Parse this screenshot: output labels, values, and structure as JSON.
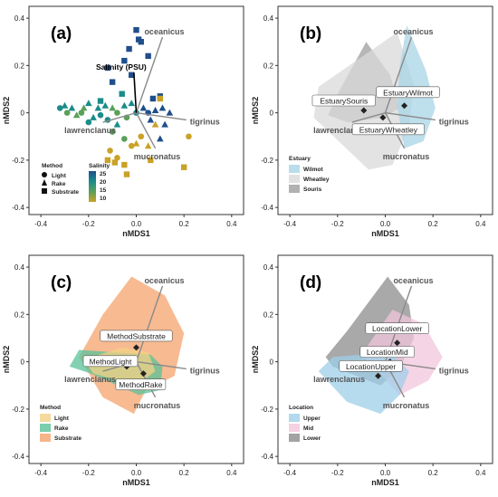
{
  "chart_data": [
    {
      "panel_label": "(a)",
      "type": "scatter",
      "xlabel": "nMDS1",
      "ylabel": "nMDS2",
      "xlim": [
        -0.45,
        0.45
      ],
      "ylim": [
        -0.43,
        0.45
      ],
      "x_ticks": [
        "-0.4",
        "-0.2",
        "0.0",
        "0.2",
        "0.4"
      ],
      "y_ticks": [
        "0.4",
        "0.2",
        "0",
        "-0.2",
        "-0.4"
      ],
      "vectors": [
        {
          "label": "oceanicus",
          "x": 0.11,
          "y": 0.32
        },
        {
          "label": "tigrinus",
          "x": 0.21,
          "y": -0.03
        },
        {
          "label": "mucronatus",
          "x": 0.08,
          "y": -0.15
        },
        {
          "label": "lawrenclanus",
          "x": -0.14,
          "y": -0.04
        },
        {
          "label": "Salinity (PSU)",
          "x": -0.01,
          "y": 0.17
        }
      ],
      "legend_method_title": "Method",
      "legend_method": [
        "Light",
        "Rake",
        "Substrate"
      ],
      "legend_salinity_title": "Salinity",
      "legend_salinity": [
        "25",
        "20",
        "15",
        "10"
      ],
      "salinity_colors": [
        "#1f4e8c",
        "#1a8c8a",
        "#5aa05a",
        "#c9a227"
      ],
      "points": [
        {
          "x": 0.0,
          "y": 0.35,
          "m": "s",
          "c": 0
        },
        {
          "x": 0.01,
          "y": 0.31,
          "m": "s",
          "c": 0
        },
        {
          "x": 0.02,
          "y": 0.3,
          "m": "s",
          "c": 0
        },
        {
          "x": -0.03,
          "y": 0.27,
          "m": "s",
          "c": 0
        },
        {
          "x": 0.05,
          "y": 0.24,
          "m": "s",
          "c": 0
        },
        {
          "x": -0.05,
          "y": 0.22,
          "m": "s",
          "c": 0
        },
        {
          "x": -0.12,
          "y": 0.19,
          "m": "s",
          "c": 0
        },
        {
          "x": -0.02,
          "y": 0.16,
          "m": "s",
          "c": 0
        },
        {
          "x": -0.1,
          "y": 0.13,
          "m": "s",
          "c": 0
        },
        {
          "x": -0.06,
          "y": 0.08,
          "m": "s",
          "c": 1
        },
        {
          "x": 0.07,
          "y": 0.06,
          "m": "s",
          "c": 0
        },
        {
          "x": 0.1,
          "y": 0.07,
          "m": "s",
          "c": 0
        },
        {
          "x": -0.15,
          "y": 0.05,
          "m": "s",
          "c": 1
        },
        {
          "x": -0.3,
          "y": 0.03,
          "m": "t",
          "c": 1
        },
        {
          "x": -0.27,
          "y": 0.02,
          "m": "t",
          "c": 1
        },
        {
          "x": -0.22,
          "y": 0.02,
          "m": "t",
          "c": 2
        },
        {
          "x": -0.2,
          "y": 0.04,
          "m": "t",
          "c": 1
        },
        {
          "x": -0.16,
          "y": 0.02,
          "m": "t",
          "c": 1
        },
        {
          "x": -0.13,
          "y": 0.03,
          "m": "t",
          "c": 1
        },
        {
          "x": -0.1,
          "y": 0.02,
          "m": "t",
          "c": 2
        },
        {
          "x": -0.05,
          "y": 0.03,
          "m": "t",
          "c": 1
        },
        {
          "x": -0.02,
          "y": 0.04,
          "m": "t",
          "c": 1
        },
        {
          "x": 0.03,
          "y": 0.02,
          "m": "t",
          "c": 0
        },
        {
          "x": 0.08,
          "y": 0.01,
          "m": "t",
          "c": 0
        },
        {
          "x": 0.11,
          "y": 0.02,
          "m": "t",
          "c": 0
        },
        {
          "x": 0.14,
          "y": 0.0,
          "m": "t",
          "c": 0
        },
        {
          "x": -0.25,
          "y": -0.01,
          "m": "t",
          "c": 2
        },
        {
          "x": -0.18,
          "y": -0.02,
          "m": "t",
          "c": 1
        },
        {
          "x": 0.06,
          "y": -0.03,
          "m": "t",
          "c": 0
        },
        {
          "x": 0.12,
          "y": -0.05,
          "m": "t",
          "c": 0
        },
        {
          "x": -0.08,
          "y": -0.05,
          "m": "t",
          "c": 1
        },
        {
          "x": 0.1,
          "y": -0.11,
          "m": "t",
          "c": 0
        },
        {
          "x": -0.32,
          "y": 0.02,
          "m": "c",
          "c": 1
        },
        {
          "x": -0.29,
          "y": 0.0,
          "m": "c",
          "c": 2
        },
        {
          "x": -0.23,
          "y": 0.0,
          "m": "c",
          "c": 2
        },
        {
          "x": -0.2,
          "y": -0.04,
          "m": "c",
          "c": 1
        },
        {
          "x": -0.15,
          "y": -0.01,
          "m": "c",
          "c": 1
        },
        {
          "x": -0.12,
          "y": -0.03,
          "m": "c",
          "c": 1
        },
        {
          "x": -0.08,
          "y": 0.0,
          "m": "c",
          "c": 2
        },
        {
          "x": -0.04,
          "y": -0.02,
          "m": "c",
          "c": 2
        },
        {
          "x": 0.0,
          "y": 0.0,
          "m": "c",
          "c": 1
        },
        {
          "x": 0.05,
          "y": 0.0,
          "m": "c",
          "c": 0
        },
        {
          "x": -0.1,
          "y": -0.08,
          "m": "c",
          "c": 2
        },
        {
          "x": -0.05,
          "y": -0.11,
          "m": "c",
          "c": 2
        },
        {
          "x": -0.11,
          "y": -0.16,
          "m": "c",
          "c": 3
        },
        {
          "x": -0.08,
          "y": -0.19,
          "m": "c",
          "c": 3
        },
        {
          "x": -0.02,
          "y": -0.14,
          "m": "c",
          "c": 3
        },
        {
          "x": 0.02,
          "y": -0.1,
          "m": "c",
          "c": 3
        },
        {
          "x": 0.0,
          "y": -0.13,
          "m": "t",
          "c": 3
        },
        {
          "x": 0.05,
          "y": -0.14,
          "m": "t",
          "c": 3
        },
        {
          "x": 0.08,
          "y": -0.05,
          "m": "t",
          "c": 3
        },
        {
          "x": 0.22,
          "y": -0.1,
          "m": "c",
          "c": 3
        },
        {
          "x": -0.09,
          "y": -0.21,
          "m": "s",
          "c": 3
        },
        {
          "x": -0.05,
          "y": -0.22,
          "m": "s",
          "c": 3
        },
        {
          "x": -0.12,
          "y": -0.2,
          "m": "s",
          "c": 3
        },
        {
          "x": -0.04,
          "y": -0.26,
          "m": "s",
          "c": 3
        },
        {
          "x": 0.06,
          "y": -0.2,
          "m": "s",
          "c": 3
        },
        {
          "x": 0.2,
          "y": -0.23,
          "m": "s",
          "c": 3
        },
        {
          "x": 0.1,
          "y": 0.06,
          "m": "s",
          "c": 3
        }
      ]
    },
    {
      "panel_label": "(b)",
      "type": "scatter",
      "xlabel": "nMDS1",
      "ylabel": "nMDS2",
      "xlim": [
        -0.45,
        0.45
      ],
      "ylim": [
        -0.43,
        0.45
      ],
      "x_ticks": [
        "-0.4",
        "-0.2",
        "0.0",
        "0.2",
        "0.4"
      ],
      "y_ticks": [
        "0.4",
        "0.2",
        "0",
        "-0.2",
        "-0.4"
      ],
      "vectors": [
        {
          "label": "oceanicus",
          "x": 0.11,
          "y": 0.32
        },
        {
          "label": "tigrinus",
          "x": 0.21,
          "y": -0.03
        },
        {
          "label": "mucronatus",
          "x": 0.08,
          "y": -0.15
        },
        {
          "label": "lawrenclanus",
          "x": -0.14,
          "y": -0.04
        }
      ],
      "legend_title": "Estuary",
      "groups": [
        {
          "name": "Souris",
          "color": "#9e9e9e",
          "centroid_label": "EstuarySouris",
          "centroid": [
            -0.09,
            0.01
          ],
          "hull": [
            [
              -0.08,
              0.3
            ],
            [
              0.02,
              0.16
            ],
            [
              0.06,
              0.02
            ],
            [
              -0.01,
              -0.02
            ],
            [
              -0.16,
              -0.04
            ],
            [
              -0.24,
              -0.01
            ],
            [
              -0.2,
              0.08
            ]
          ]
        },
        {
          "name": "Wheatley",
          "color": "#d9d9d9",
          "centroid_label": "EstuaryWheatley",
          "centroid": [
            -0.01,
            -0.02
          ],
          "hull": [
            [
              0.05,
              0.34
            ],
            [
              0.12,
              0.12
            ],
            [
              0.1,
              -0.06
            ],
            [
              0.03,
              -0.22
            ],
            [
              -0.07,
              -0.24
            ],
            [
              -0.3,
              -0.02
            ],
            [
              -0.28,
              0.11
            ]
          ]
        },
        {
          "name": "Wilmot",
          "color": "#a8d4e6",
          "centroid_label": "EstuaryWilmot",
          "centroid": [
            0.08,
            0.03
          ],
          "hull": [
            [
              0.09,
              0.37
            ],
            [
              0.17,
              0.18
            ],
            [
              0.21,
              0.02
            ],
            [
              0.16,
              -0.12
            ],
            [
              0.08,
              -0.15
            ],
            [
              0.05,
              0.03
            ],
            [
              0.06,
              0.19
            ]
          ]
        }
      ]
    },
    {
      "panel_label": "(c)",
      "type": "scatter",
      "xlabel": "nMDS1",
      "ylabel": "nMDS2",
      "xlim": [
        -0.45,
        0.45
      ],
      "ylim": [
        -0.43,
        0.45
      ],
      "x_ticks": [
        "-0.4",
        "-0.2",
        "0.0",
        "0.2",
        "0.4"
      ],
      "y_ticks": [
        "0.4",
        "0.2",
        "0",
        "-0.2",
        "-0.4"
      ],
      "vectors": [
        {
          "label": "oceanicus",
          "x": 0.11,
          "y": 0.32
        },
        {
          "label": "tigrinus",
          "x": 0.21,
          "y": -0.03
        },
        {
          "label": "mucronatus",
          "x": 0.08,
          "y": -0.15
        },
        {
          "label": "lawrenclanus",
          "x": -0.14,
          "y": -0.04
        }
      ],
      "legend_title": "Method",
      "groups": [
        {
          "name": "Substrate",
          "color": "#f4a36c",
          "centroid_label": "MethodSubstrate",
          "centroid": [
            0.0,
            0.06
          ],
          "hull": [
            [
              -0.02,
              0.36
            ],
            [
              0.12,
              0.28
            ],
            [
              0.2,
              0.12
            ],
            [
              0.16,
              -0.06
            ],
            [
              0.04,
              -0.12
            ],
            [
              -0.01,
              -0.22
            ],
            [
              -0.14,
              -0.15
            ],
            [
              -0.24,
              0.02
            ],
            [
              -0.14,
              0.2
            ]
          ]
        },
        {
          "name": "Rake",
          "color": "#59c29a",
          "centroid_label": "MethodRake",
          "centroid": [
            0.03,
            -0.05
          ],
          "hull": [
            [
              0.06,
              0.03
            ],
            [
              0.11,
              -0.02
            ],
            [
              0.1,
              -0.12
            ],
            [
              0.01,
              -0.14
            ],
            [
              -0.19,
              -0.05
            ],
            [
              -0.28,
              -0.02
            ],
            [
              -0.24,
              0.05
            ]
          ]
        },
        {
          "name": "Light",
          "color": "#f3d186",
          "centroid_label": "MethodLight",
          "centroid": [
            -0.04,
            -0.02
          ],
          "hull": [
            [
              -0.06,
              0.06
            ],
            [
              0.05,
              0.04
            ],
            [
              0.08,
              -0.04
            ],
            [
              0.0,
              -0.1
            ],
            [
              -0.18,
              -0.05
            ],
            [
              -0.22,
              0.01
            ]
          ]
        }
      ]
    },
    {
      "panel_label": "(d)",
      "type": "scatter",
      "xlabel": "nMDS1",
      "ylabel": "nMDS2",
      "xlim": [
        -0.45,
        0.45
      ],
      "ylim": [
        -0.43,
        0.45
      ],
      "x_ticks": [
        "-0.4",
        "-0.2",
        "0.0",
        "0.2",
        "0.4"
      ],
      "y_ticks": [
        "0.4",
        "0.2",
        "0",
        "-0.2",
        "-0.4"
      ],
      "vectors": [
        {
          "label": "oceanicus",
          "x": 0.11,
          "y": 0.32
        },
        {
          "label": "tigrinus",
          "x": 0.21,
          "y": -0.03
        },
        {
          "label": "mucronatus",
          "x": 0.08,
          "y": -0.15
        },
        {
          "label": "lawrenclanus",
          "x": -0.14,
          "y": -0.04
        }
      ],
      "legend_title": "Location",
      "groups": [
        {
          "name": "Lower",
          "color": "#8c8c8c",
          "centroid_label": "LocationLower",
          "centroid": [
            0.05,
            0.08
          ],
          "hull": [
            [
              0.01,
              0.36
            ],
            [
              0.1,
              0.24
            ],
            [
              0.12,
              0.1
            ],
            [
              0.06,
              -0.03
            ],
            [
              -0.02,
              -0.1
            ],
            [
              -0.22,
              -0.02
            ],
            [
              -0.25,
              0.02
            ],
            [
              -0.16,
              0.13
            ]
          ]
        },
        {
          "name": "Mid",
          "color": "#f2c6dc",
          "centroid_label": "LocationMid",
          "centroid": [
            0.02,
            0.0
          ],
          "hull": [
            [
              0.03,
              0.22
            ],
            [
              0.16,
              0.16
            ],
            [
              0.24,
              0.02
            ],
            [
              0.18,
              -0.08
            ],
            [
              0.06,
              -0.14
            ],
            [
              -0.04,
              -0.03
            ],
            [
              -0.1,
              0.03
            ]
          ]
        },
        {
          "name": "Upper",
          "color": "#9fcfe8",
          "centroid_label": "LocationUpper",
          "centroid": [
            -0.03,
            -0.06
          ],
          "hull": [
            [
              0.02,
              0.04
            ],
            [
              0.1,
              -0.04
            ],
            [
              0.06,
              -0.14
            ],
            [
              -0.02,
              -0.22
            ],
            [
              -0.16,
              -0.17
            ],
            [
              -0.28,
              -0.04
            ],
            [
              -0.22,
              0.02
            ]
          ]
        }
      ]
    }
  ]
}
